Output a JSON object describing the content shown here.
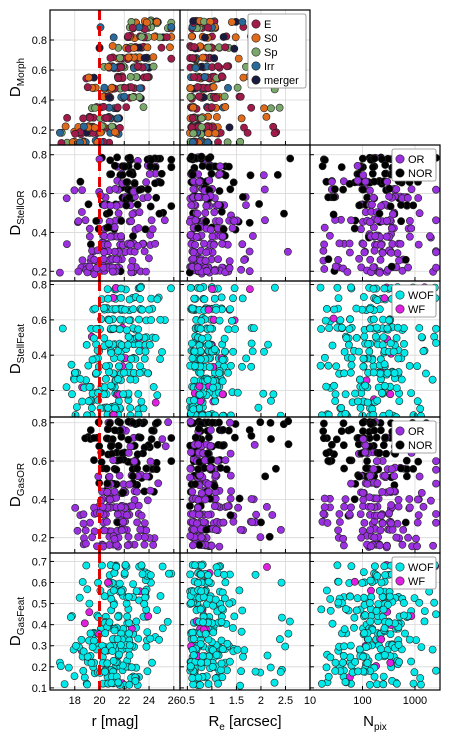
{
  "chart_data": {
    "type": "scatter",
    "columns": [
      {
        "xlabel": "r [mag]",
        "xscale": "linear",
        "xlim": [
          16,
          26.5
        ],
        "xticks": [
          "18",
          "20",
          "22",
          "24",
          "26"
        ],
        "xtick_values": [
          18,
          20,
          22,
          24,
          26
        ]
      },
      {
        "xlabel_main": "R",
        "xlabel_sub": "e",
        "xlabel_rest": " [arcsec]",
        "xscale": "linear",
        "xlim": [
          0.35,
          3.0
        ],
        "xticks": [
          "0.5",
          "1",
          "1.5",
          "2",
          "2.5"
        ],
        "xtick_values": [
          0.5,
          1,
          1.5,
          2,
          2.5
        ]
      },
      {
        "xlabel_main": "N",
        "xlabel_sub": "pix",
        "xscale": "log",
        "xlim": [
          10,
          3000
        ],
        "xticks": [
          "10",
          "100",
          "1000"
        ],
        "xtick_values": [
          10,
          100,
          1000
        ]
      }
    ],
    "rows": [
      {
        "ylabel_main": "D",
        "ylabel_sub": "Morph",
        "ylim": [
          0.1,
          1.0
        ],
        "yticks": [
          "0.2",
          "0.4",
          "0.6",
          "0.8"
        ],
        "ytick_values": [
          0.2,
          0.4,
          0.6,
          0.8
        ],
        "columns_shown": [
          0,
          1
        ],
        "legend": [
          {
            "label": "E",
            "color": "#a01a4a"
          },
          {
            "label": "S0",
            "color": "#e06a1c"
          },
          {
            "label": "Sp",
            "color": "#7aa86a"
          },
          {
            "label": "Irr",
            "color": "#2a6a9a"
          },
          {
            "label": "merger",
            "color": "#1a1a40"
          }
        ]
      },
      {
        "ylabel_main": "D",
        "ylabel_sub": "StellOR",
        "ylim": [
          0.15,
          0.85
        ],
        "yticks": [
          "0.2",
          "0.4",
          "0.6",
          "0.8"
        ],
        "ytick_values": [
          0.2,
          0.4,
          0.6,
          0.8
        ],
        "columns_shown": [
          0,
          1,
          2
        ],
        "legend": [
          {
            "label": "OR",
            "color": "#9b30e0"
          },
          {
            "label": "NOR",
            "color": "#000000"
          }
        ]
      },
      {
        "ylabel_main": "D",
        "ylabel_sub": "StellFeat",
        "ylim": [
          0.05,
          0.82
        ],
        "yticks": [
          "0.2",
          "0.4",
          "0.6",
          "0.8"
        ],
        "ytick_values": [
          0.2,
          0.4,
          0.6,
          0.8
        ],
        "columns_shown": [
          0,
          1,
          2
        ],
        "legend": [
          {
            "label": "WOF",
            "color": "#00e8e8"
          },
          {
            "label": "WF",
            "color": "#e020e0"
          }
        ]
      },
      {
        "ylabel_main": "D",
        "ylabel_sub": "GasOR",
        "ylim": [
          0.12,
          0.83
        ],
        "yticks": [
          "0.2",
          "0.4",
          "0.6",
          "0.8"
        ],
        "ytick_values": [
          0.2,
          0.4,
          0.6,
          0.8
        ],
        "columns_shown": [
          0,
          1,
          2
        ],
        "legend": [
          {
            "label": "OR",
            "color": "#9b30e0"
          },
          {
            "label": "NOR",
            "color": "#000000"
          }
        ]
      },
      {
        "ylabel_main": "D",
        "ylabel_sub": "GasFeat",
        "ylim": [
          0.09,
          0.74
        ],
        "yticks": [
          "0.1",
          "0.2",
          "0.3",
          "0.4",
          "0.5",
          "0.6",
          "0.7"
        ],
        "ytick_values": [
          0.1,
          0.2,
          0.3,
          0.4,
          0.5,
          0.6,
          0.7
        ],
        "columns_shown": [
          0,
          1,
          2
        ],
        "legend": [
          {
            "label": "WOF",
            "color": "#00e8e8"
          },
          {
            "label": "WF",
            "color": "#e020e0"
          }
        ]
      }
    ],
    "reference_line": {
      "column": 0,
      "x": 20,
      "color": "#e00000",
      "style": "dashed"
    },
    "grid": true
  }
}
